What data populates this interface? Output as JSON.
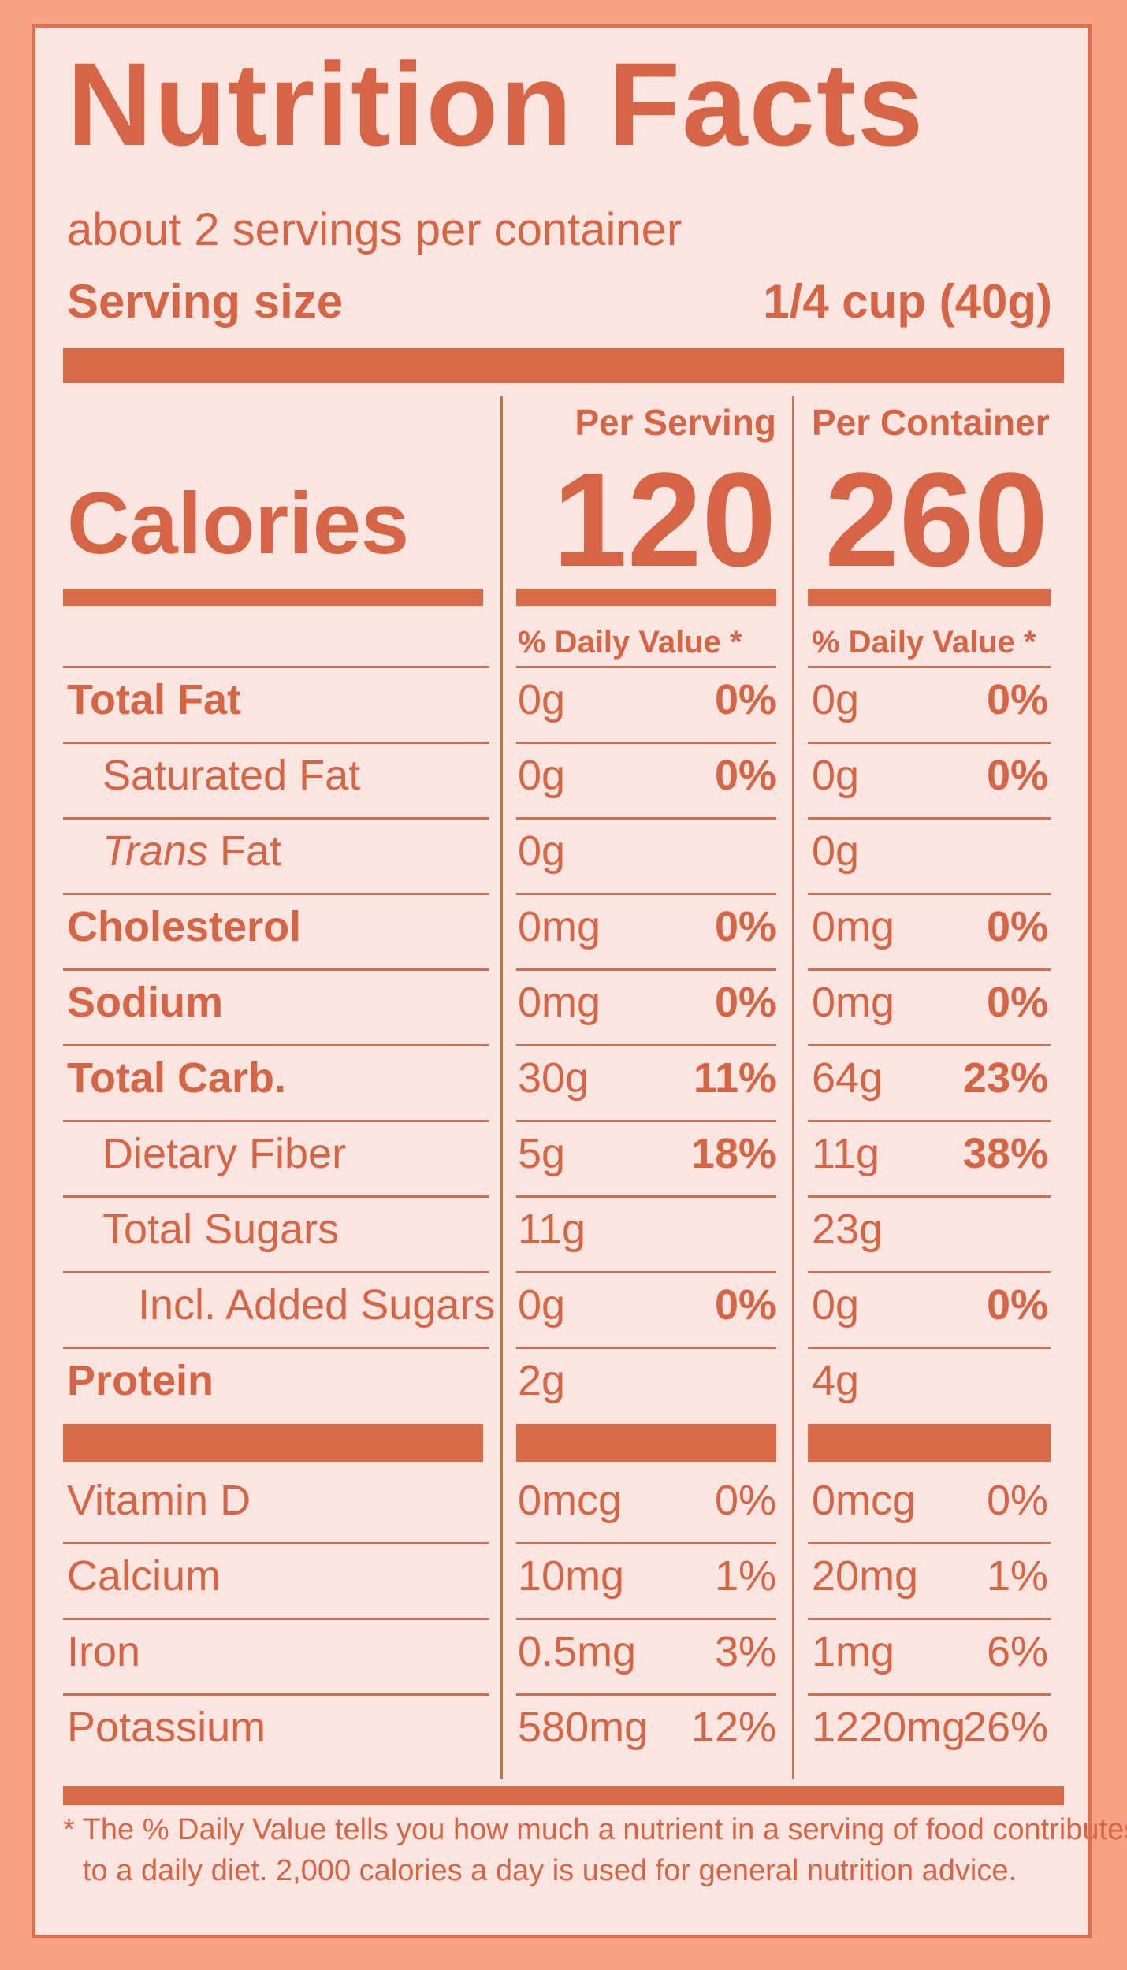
{
  "title": "Nutrition Facts",
  "servings_per_container": "about 2 servings per container",
  "serving_size_label": "Serving size",
  "serving_size_value": "1/4 cup (40g)",
  "per_serving_label": "Per Serving",
  "per_container_label": "Per Container",
  "calories_label": "Calories",
  "calories_serving": "120",
  "calories_container": "260",
  "dv_header": "% Daily Value *",
  "rows": [
    {
      "name": "Total Fat",
      "s_amt": "0g",
      "s_pct": "0%",
      "c_amt": "0g",
      "c_pct": "0%"
    },
    {
      "name": "Saturated Fat",
      "s_amt": "0g",
      "s_pct": "0%",
      "c_amt": "0g",
      "c_pct": "0%"
    },
    {
      "name_italic": "Trans",
      "name": " Fat",
      "s_amt": "0g",
      "s_pct": "",
      "c_amt": "0g",
      "c_pct": ""
    },
    {
      "name": "Cholesterol",
      "s_amt": "0mg",
      "s_pct": "0%",
      "c_amt": "0mg",
      "c_pct": "0%"
    },
    {
      "name": "Sodium",
      "s_amt": "0mg",
      "s_pct": "0%",
      "c_amt": "0mg",
      "c_pct": "0%"
    },
    {
      "name": "Total Carb.",
      "s_amt": "30g",
      "s_pct": "11%",
      "c_amt": "64g",
      "c_pct": "23%"
    },
    {
      "name": "Dietary Fiber",
      "s_amt": "5g",
      "s_pct": "18%",
      "c_amt": "11g",
      "c_pct": "38%"
    },
    {
      "name": "Total Sugars",
      "s_amt": "11g",
      "s_pct": "",
      "c_amt": "23g",
      "c_pct": ""
    },
    {
      "name": "Incl. Added Sugars",
      "s_amt": "0g",
      "s_pct": "0%",
      "c_amt": "0g",
      "c_pct": "0%"
    },
    {
      "name": "Protein",
      "s_amt": "2g",
      "s_pct": "",
      "c_amt": "4g",
      "c_pct": ""
    }
  ],
  "vitamins": [
    {
      "name": "Vitamin D",
      "s_amt": "0mcg",
      "s_pct": "0%",
      "c_amt": "0mcg",
      "c_pct": "0%"
    },
    {
      "name": "Calcium",
      "s_amt": "10mg",
      "s_pct": "1%",
      "c_amt": "20mg",
      "c_pct": "1%"
    },
    {
      "name": "Iron",
      "s_amt": "0.5mg",
      "s_pct": "3%",
      "c_amt": "1mg",
      "c_pct": "6%"
    },
    {
      "name": "Potassium",
      "s_amt": "580mg",
      "s_pct": "12%",
      "c_amt": "1220mg",
      "c_pct": "26%"
    }
  ],
  "footnote_line1": "* The % Daily Value tells you how much a nutrient in a serving of food contributes",
  "footnote_line2": "to a daily diet. 2,000 calories a day is used for general nutrition advice.",
  "colors": {
    "text": "#d56544",
    "background": "#fbe5e1",
    "border": "#f7a285"
  }
}
